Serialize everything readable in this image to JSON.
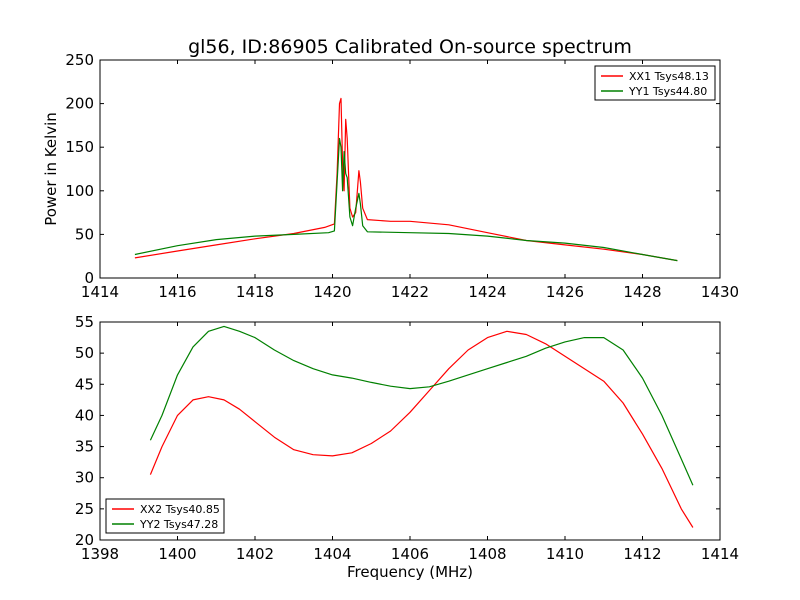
{
  "title": "gl56, ID:86905 Calibrated On-source spectrum",
  "chart_data": [
    {
      "type": "line",
      "title": "gl56, ID:86905 Calibrated On-source spectrum",
      "xlabel": "",
      "ylabel": "Power in Kelvin",
      "xlim": [
        1414,
        1430
      ],
      "ylim": [
        0,
        250
      ],
      "xticks": [
        1414,
        1416,
        1418,
        1420,
        1422,
        1424,
        1426,
        1428,
        1430
      ],
      "yticks": [
        0,
        50,
        100,
        150,
        200,
        250
      ],
      "grid": false,
      "legend_position": "top-right",
      "series": [
        {
          "name": "XX1 Tsys48.13",
          "color": "#ff0000",
          "points": [
            [
              1414.9,
              23
            ],
            [
              1416,
              31
            ],
            [
              1417,
              38
            ],
            [
              1418,
              45
            ],
            [
              1419,
              51
            ],
            [
              1419.8,
              58
            ],
            [
              1420.05,
              62
            ],
            [
              1420.12,
              120
            ],
            [
              1420.18,
              200
            ],
            [
              1420.22,
              206
            ],
            [
              1420.26,
              130
            ],
            [
              1420.3,
              100
            ],
            [
              1420.34,
              182
            ],
            [
              1420.38,
              160
            ],
            [
              1420.45,
              80
            ],
            [
              1420.52,
              70
            ],
            [
              1420.6,
              75
            ],
            [
              1420.68,
              123
            ],
            [
              1420.72,
              110
            ],
            [
              1420.78,
              80
            ],
            [
              1420.9,
              67
            ],
            [
              1421.5,
              65
            ],
            [
              1422,
              65
            ],
            [
              1423,
              61
            ],
            [
              1424,
              52
            ],
            [
              1425,
              43
            ],
            [
              1426,
              38
            ],
            [
              1427,
              33
            ],
            [
              1428,
              27
            ],
            [
              1428.9,
              20
            ]
          ]
        },
        {
          "name": "YY1 Tsys44.80",
          "color": "#008000",
          "points": [
            [
              1414.9,
              27
            ],
            [
              1416,
              37
            ],
            [
              1417,
              44
            ],
            [
              1418,
              48
            ],
            [
              1419,
              50
            ],
            [
              1419.9,
              52
            ],
            [
              1420.05,
              54
            ],
            [
              1420.12,
              110
            ],
            [
              1420.18,
              160
            ],
            [
              1420.22,
              150
            ],
            [
              1420.26,
              100
            ],
            [
              1420.3,
              145
            ],
            [
              1420.34,
              120
            ],
            [
              1420.38,
              115
            ],
            [
              1420.45,
              70
            ],
            [
              1420.52,
              60
            ],
            [
              1420.6,
              80
            ],
            [
              1420.68,
              97
            ],
            [
              1420.72,
              85
            ],
            [
              1420.78,
              60
            ],
            [
              1420.9,
              53
            ],
            [
              1422,
              52
            ],
            [
              1423,
              51
            ],
            [
              1424,
              48
            ],
            [
              1425,
              43
            ],
            [
              1426,
              40
            ],
            [
              1427,
              35
            ],
            [
              1428,
              27
            ],
            [
              1428.9,
              20
            ]
          ]
        }
      ]
    },
    {
      "type": "line",
      "title": "",
      "xlabel": "Frequency (MHz)",
      "ylabel": "",
      "xlim": [
        1398,
        1414
      ],
      "ylim": [
        20,
        55
      ],
      "xticks": [
        1398,
        1400,
        1402,
        1404,
        1406,
        1408,
        1410,
        1412,
        1414
      ],
      "yticks": [
        20,
        25,
        30,
        35,
        40,
        45,
        50,
        55
      ],
      "grid": false,
      "legend_position": "bottom-left",
      "series": [
        {
          "name": "XX2 Tsys40.85",
          "color": "#ff0000",
          "points": [
            [
              1399.3,
              30.5
            ],
            [
              1399.6,
              35
            ],
            [
              1400,
              40
            ],
            [
              1400.4,
              42.5
            ],
            [
              1400.8,
              43
            ],
            [
              1401.2,
              42.5
            ],
            [
              1401.6,
              41
            ],
            [
              1402,
              39
            ],
            [
              1402.5,
              36.5
            ],
            [
              1403,
              34.5
            ],
            [
              1403.5,
              33.7
            ],
            [
              1404,
              33.5
            ],
            [
              1404.5,
              34
            ],
            [
              1405,
              35.5
            ],
            [
              1405.5,
              37.5
            ],
            [
              1406,
              40.5
            ],
            [
              1406.5,
              44
            ],
            [
              1407,
              47.5
            ],
            [
              1407.5,
              50.5
            ],
            [
              1408,
              52.5
            ],
            [
              1408.5,
              53.5
            ],
            [
              1409,
              53
            ],
            [
              1409.5,
              51.5
            ],
            [
              1410,
              49.5
            ],
            [
              1410.5,
              47.5
            ],
            [
              1411,
              45.5
            ],
            [
              1411.5,
              42
            ],
            [
              1412,
              37
            ],
            [
              1412.5,
              31.5
            ],
            [
              1413,
              25
            ],
            [
              1413.3,
              22
            ]
          ]
        },
        {
          "name": "YY2 Tsys47.28",
          "color": "#008000",
          "points": [
            [
              1399.3,
              36
            ],
            [
              1399.6,
              40
            ],
            [
              1400,
              46.5
            ],
            [
              1400.4,
              51
            ],
            [
              1400.8,
              53.5
            ],
            [
              1401.2,
              54.3
            ],
            [
              1401.6,
              53.5
            ],
            [
              1402,
              52.5
            ],
            [
              1402.5,
              50.5
            ],
            [
              1403,
              48.8
            ],
            [
              1403.5,
              47.5
            ],
            [
              1404,
              46.5
            ],
            [
              1404.5,
              46
            ],
            [
              1405,
              45.3
            ],
            [
              1405.5,
              44.7
            ],
            [
              1406,
              44.3
            ],
            [
              1406.5,
              44.6
            ],
            [
              1407,
              45.5
            ],
            [
              1407.5,
              46.5
            ],
            [
              1408,
              47.5
            ],
            [
              1408.5,
              48.5
            ],
            [
              1409,
              49.5
            ],
            [
              1409.5,
              50.8
            ],
            [
              1410,
              51.8
            ],
            [
              1410.5,
              52.5
            ],
            [
              1411,
              52.5
            ],
            [
              1411.5,
              50.5
            ],
            [
              1412,
              46
            ],
            [
              1412.5,
              40
            ],
            [
              1413,
              33
            ],
            [
              1413.3,
              28.8
            ]
          ]
        }
      ]
    }
  ]
}
